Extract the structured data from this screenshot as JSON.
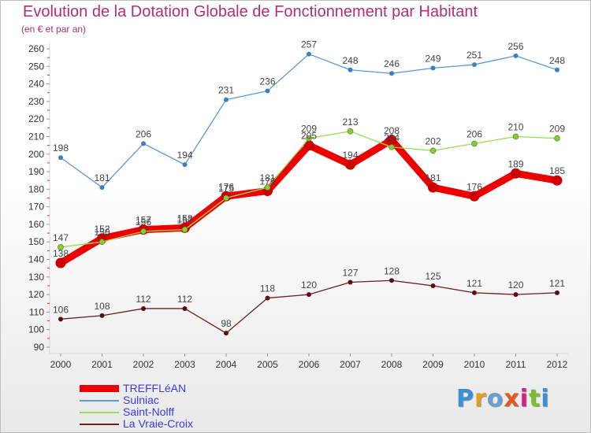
{
  "title": "Evolution de la Dotation Globale de Fonctionnement par Habitant",
  "subtitle": "(en € et par an)",
  "logo": "Proxiti",
  "chart_data": {
    "type": "line",
    "title": "Evolution de la Dotation Globale de Fonctionnement par Habitant",
    "subtitle": "(en € et par an)",
    "xlabel": "",
    "ylabel": "",
    "categories": [
      "2000",
      "2001",
      "2002",
      "2003",
      "2004",
      "2005",
      "2006",
      "2007",
      "2008",
      "2009",
      "2010",
      "2011",
      "2012"
    ],
    "ylim": [
      90,
      260
    ],
    "yticks": [
      90,
      100,
      110,
      120,
      130,
      140,
      150,
      160,
      170,
      180,
      190,
      200,
      210,
      220,
      230,
      240,
      250,
      260
    ],
    "grid": false,
    "legend_position": "bottom-left",
    "series": [
      {
        "name": "Sulniac",
        "color": "#5b9bd5",
        "values": [
          198,
          181,
          206,
          194,
          231,
          236,
          257,
          248,
          246,
          249,
          251,
          256,
          248
        ]
      },
      {
        "name": "Saint-Nolff",
        "color": "#99dd55",
        "values": [
          147,
          150,
          156,
          157,
          175,
          181,
          209,
          213,
          204,
          202,
          206,
          210,
          209
        ]
      },
      {
        "name": "La Vraie-Croix",
        "color": "#6b1e24",
        "values": [
          106,
          108,
          112,
          112,
          98,
          118,
          120,
          127,
          128,
          125,
          121,
          120,
          121
        ]
      },
      {
        "name": "TREFFLéAN",
        "color": "#ee0000",
        "values": [
          138,
          152,
          157,
          158,
          176,
          179,
          205,
          194,
          208,
          181,
          176,
          189,
          185
        ]
      }
    ],
    "legend_order": [
      "TREFFLéAN",
      "Sulniac",
      "Saint-Nolff",
      "La Vraie-Croix"
    ]
  }
}
